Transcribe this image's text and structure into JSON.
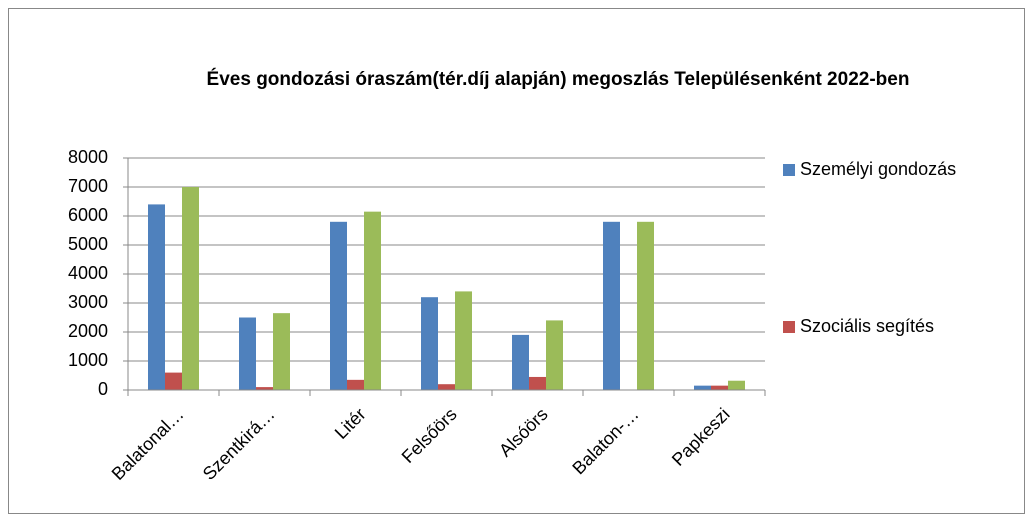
{
  "chart_data": {
    "type": "bar",
    "title": "Éves gondozási óraszám(tér.díj alapján) megoszlás Településenként 2022-ben",
    "categories": [
      "Balatonal…",
      "Szentkirá…",
      "Litér",
      "Felsőörs",
      "Alsóörs",
      "Balaton-…",
      "Papkeszi"
    ],
    "series": [
      {
        "name": "Személyi gondozás",
        "color": "#4f81bd",
        "values": [
          6400,
          2500,
          5800,
          3200,
          1900,
          5800,
          150
        ]
      },
      {
        "name": "Szociális segítés",
        "color": "#c0504d",
        "values": [
          600,
          100,
          350,
          200,
          450,
          0,
          150
        ]
      },
      {
        "color": "#9bbb59",
        "values": [
          7000,
          2650,
          6150,
          3400,
          2400,
          5800,
          320
        ]
      }
    ],
    "ylim": [
      0,
      8000
    ],
    "yticks": [
      0,
      1000,
      2000,
      3000,
      4000,
      5000,
      6000,
      7000,
      8000
    ],
    "grid": true
  }
}
